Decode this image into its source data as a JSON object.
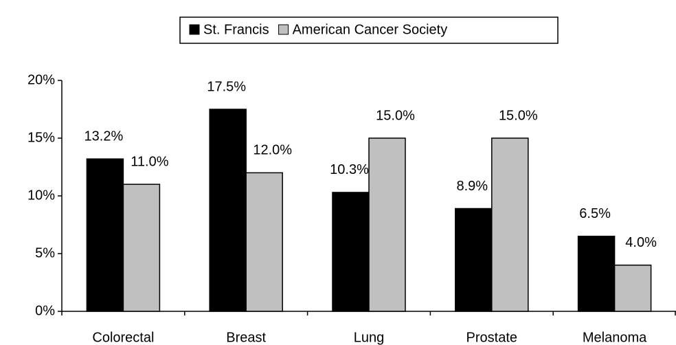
{
  "chart_data": {
    "type": "bar",
    "categories": [
      "Colorectal",
      "Breast",
      "Lung",
      "Prostate",
      "Melanoma"
    ],
    "series": [
      {
        "name": "St. Francis",
        "color": "#000000",
        "values": [
          13.2,
          17.5,
          10.3,
          8.9,
          6.5
        ],
        "value_labels": [
          "13.2%",
          "17.5%",
          "10.3%",
          "8.9%",
          "6.5%"
        ]
      },
      {
        "name": "American Cancer Society",
        "color": "#c0c0c0",
        "values": [
          11.0,
          12.0,
          15.0,
          15.0,
          4.0
        ],
        "value_labels": [
          "11.0%",
          "12.0%",
          "15.0%",
          "15.0%",
          "4.0%"
        ]
      }
    ],
    "ylim": [
      0,
      20
    ],
    "yticks": [
      {
        "value": 0,
        "label": "0%"
      },
      {
        "value": 5,
        "label": "5%"
      },
      {
        "value": 10,
        "label": "10%"
      },
      {
        "value": 15,
        "label": "15%"
      },
      {
        "value": 20,
        "label": "20%"
      }
    ],
    "legend": "top"
  }
}
